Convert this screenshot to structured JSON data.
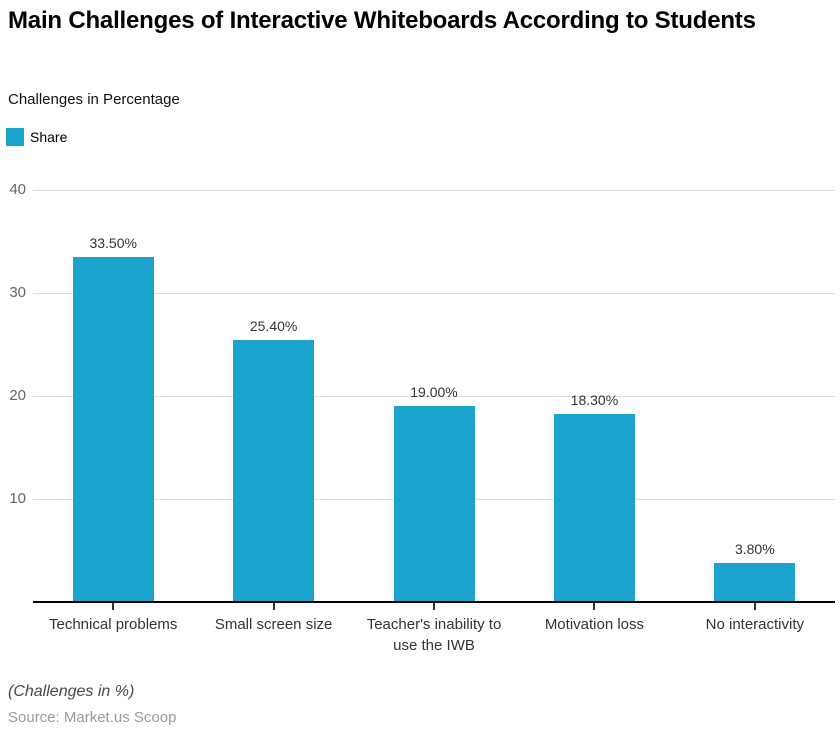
{
  "header": {
    "title": "Main Challenges of Interactive Whiteboards According to Students",
    "subtitle": "Challenges in Percentage",
    "legend": {
      "label": "Share",
      "swatch_color": "#1ba3ce"
    }
  },
  "chart_data": {
    "type": "bar",
    "title": "Main Challenges of Interactive Whiteboards According to Students",
    "subtitle": "Challenges in Percentage",
    "legend_entries": [
      "Share"
    ],
    "legend_position": "top-left",
    "categories": [
      "Technical problems",
      "Small screen size",
      "Teacher's inability to use the IWB",
      "Motivation loss",
      "No interactivity"
    ],
    "values": [
      33.5,
      25.4,
      19.0,
      18.3,
      3.8
    ],
    "value_labels": [
      "33.50%",
      "25.40%",
      "19.00%",
      "18.30%",
      "3.80%"
    ],
    "xlabel": "",
    "ylabel": "",
    "ylim": [
      0,
      40
    ],
    "yticks": [
      10,
      20,
      30,
      40
    ],
    "grid": true,
    "bar_color": "#1ba3ce",
    "gridline_color": "#dcdcdc",
    "axis_line_color": "#000000"
  },
  "footer": {
    "note": "(Challenges in %)",
    "source": "Source: Market.us Scoop"
  }
}
